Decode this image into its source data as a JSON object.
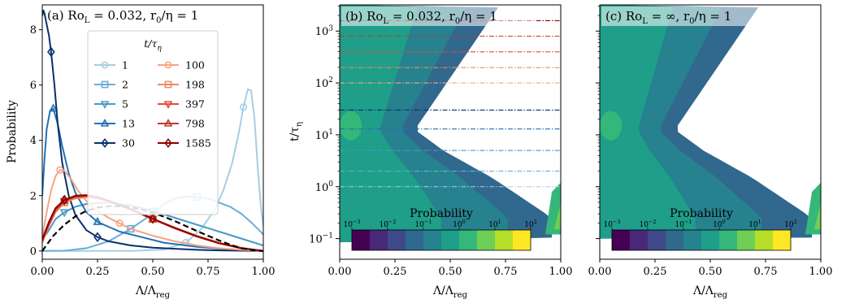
{
  "chart_data": [
    {
      "type": "line",
      "panel": "a",
      "title": "(a) Ro_L = 0.032, r_0/η = 1",
      "title_parts": {
        "prefix": "(a) Ro",
        "sub": "L",
        "mid": "= 0.032, r",
        "sub2": "0",
        "suffix": "/η = 1"
      },
      "xlabel": "Λ/Λ_reg",
      "xlabel_parts": {
        "main": "Λ/Λ",
        "sub": "reg"
      },
      "ylabel": "Probability",
      "xlim": [
        0,
        1
      ],
      "ylim": [
        -0.3,
        8.9
      ],
      "xticks": [
        "0.00",
        "0.25",
        "0.50",
        "0.75",
        "1.00"
      ],
      "yticks": [
        "0",
        "2",
        "4",
        "6",
        "8"
      ],
      "legend": {
        "title": "t/τ_η",
        "title_parts": {
          "main": "t/τ",
          "sub": "η"
        },
        "placement": "upper center"
      },
      "series": [
        {
          "name": "1",
          "color": "#a6cee3",
          "marker": "circle",
          "x": [
            0.0,
            0.2,
            0.4,
            0.55,
            0.65,
            0.72,
            0.78,
            0.82,
            0.86,
            0.89,
            0.91,
            0.93,
            0.945,
            0.96,
            0.975,
            0.99,
            1.0
          ],
          "y": [
            0.0,
            0.0,
            0.0,
            0.05,
            0.3,
            0.8,
            1.5,
            2.2,
            3.2,
            4.3,
            5.2,
            5.85,
            5.8,
            4.8,
            3.0,
            1.5,
            0.9
          ]
        },
        {
          "name": "2",
          "color": "#6aaed6",
          "marker": "square",
          "x": [
            0.0,
            0.1,
            0.2,
            0.3,
            0.4,
            0.5,
            0.55,
            0.6,
            0.65,
            0.7,
            0.75,
            0.8,
            0.85,
            0.9,
            0.95,
            1.0
          ],
          "y": [
            0.0,
            0.01,
            0.1,
            0.35,
            0.8,
            1.35,
            1.7,
            1.9,
            1.97,
            1.95,
            1.9,
            1.75,
            1.6,
            1.35,
            1.0,
            0.6
          ]
        },
        {
          "name": "5",
          "color": "#4a98c9",
          "marker": "triangle-down",
          "x": [
            0.0,
            0.03,
            0.06,
            0.1,
            0.15,
            0.2,
            0.3,
            0.4,
            0.5,
            0.6,
            0.7,
            0.8,
            0.9,
            1.0
          ],
          "y": [
            0.4,
            0.75,
            1.15,
            1.4,
            1.6,
            1.7,
            1.75,
            1.65,
            1.45,
            1.2,
            0.95,
            0.7,
            0.45,
            0.2
          ]
        },
        {
          "name": "13",
          "color": "#2171b5",
          "marker": "triangle-up",
          "x": [
            0.0,
            0.01,
            0.02,
            0.035,
            0.05,
            0.07,
            0.09,
            0.12,
            0.15,
            0.2,
            0.25,
            0.35,
            0.45,
            0.55,
            0.7,
            0.85,
            1.0
          ],
          "y": [
            2.0,
            3.3,
            4.4,
            5.05,
            5.15,
            4.6,
            3.8,
            2.8,
            2.1,
            1.4,
            1.05,
            0.7,
            0.5,
            0.3,
            0.15,
            0.05,
            0.0
          ]
        },
        {
          "name": "30",
          "color": "#08306b",
          "marker": "diamond",
          "x": [
            0.0,
            0.005,
            0.01,
            0.02,
            0.03,
            0.04,
            0.055,
            0.07,
            0.09,
            0.12,
            0.15,
            0.2,
            0.25,
            0.3,
            0.4,
            0.5,
            0.6,
            0.7,
            0.8,
            0.9,
            1.0
          ],
          "y": [
            8.5,
            8.7,
            8.6,
            8.2,
            7.8,
            7.2,
            6.0,
            4.6,
            3.2,
            2.0,
            1.3,
            0.75,
            0.5,
            0.35,
            0.2,
            0.12,
            0.08,
            0.04,
            0.02,
            0.01,
            0.0
          ]
        },
        {
          "name": "100",
          "color": "#f4a582",
          "marker": "circle",
          "x": [
            0.0,
            0.02,
            0.04,
            0.06,
            0.08,
            0.1,
            0.13,
            0.16,
            0.2,
            0.25,
            0.3,
            0.35,
            0.4,
            0.5,
            0.6,
            0.7,
            0.8,
            0.9,
            1.0
          ],
          "y": [
            0.5,
            1.4,
            2.2,
            2.7,
            2.93,
            2.9,
            2.6,
            2.2,
            1.8,
            1.45,
            1.2,
            1.0,
            0.8,
            0.55,
            0.35,
            0.2,
            0.1,
            0.04,
            0.0
          ]
        },
        {
          "name": "198",
          "color": "#ef8a62",
          "marker": "square",
          "x": [
            0.0,
            0.03,
            0.06,
            0.1,
            0.15,
            0.2,
            0.25,
            0.3,
            0.4,
            0.5,
            0.6,
            0.7,
            0.8,
            0.9,
            1.0
          ],
          "y": [
            0.3,
            0.9,
            1.4,
            1.75,
            1.9,
            1.95,
            1.9,
            1.8,
            1.5,
            1.15,
            0.85,
            0.55,
            0.3,
            0.12,
            0.0
          ]
        },
        {
          "name": "397",
          "color": "#e34a33",
          "marker": "triangle-down",
          "x": [
            0.0,
            0.03,
            0.06,
            0.1,
            0.15,
            0.2,
            0.25,
            0.3,
            0.4,
            0.5,
            0.6,
            0.7,
            0.8,
            0.9,
            1.0
          ],
          "y": [
            0.35,
            0.95,
            1.45,
            1.8,
            1.95,
            1.98,
            1.92,
            1.8,
            1.5,
            1.15,
            0.82,
            0.52,
            0.28,
            0.1,
            0.0
          ]
        },
        {
          "name": "798",
          "color": "#c0392b",
          "marker": "triangle-up",
          "x": [
            0.0,
            0.03,
            0.06,
            0.1,
            0.15,
            0.2,
            0.25,
            0.3,
            0.4,
            0.5,
            0.6,
            0.7,
            0.8,
            0.9,
            1.0
          ],
          "y": [
            0.4,
            1.0,
            1.5,
            1.82,
            1.97,
            2.0,
            1.93,
            1.8,
            1.5,
            1.15,
            0.82,
            0.52,
            0.28,
            0.1,
            0.0
          ]
        },
        {
          "name": "1585",
          "color": "#8b0000",
          "marker": "diamond",
          "x": [
            0.0,
            0.03,
            0.06,
            0.1,
            0.15,
            0.2,
            0.25,
            0.3,
            0.4,
            0.5,
            0.6,
            0.7,
            0.8,
            0.9,
            1.0
          ],
          "y": [
            0.42,
            1.05,
            1.55,
            1.85,
            2.0,
            2.02,
            1.95,
            1.82,
            1.52,
            1.17,
            0.83,
            0.53,
            0.28,
            0.1,
            0.0
          ]
        },
        {
          "name": "",
          "color": "#000000",
          "style": "dashed",
          "x": [
            0.0,
            0.05,
            0.1,
            0.15,
            0.2,
            0.25,
            0.3,
            0.35,
            0.4,
            0.45,
            0.5,
            0.55,
            0.6,
            0.65,
            0.7,
            0.75,
            0.8,
            0.85,
            0.9,
            0.95,
            1.0
          ],
          "y": [
            0.0,
            0.55,
            0.95,
            1.25,
            1.45,
            1.57,
            1.62,
            1.62,
            1.58,
            1.5,
            1.38,
            1.24,
            1.08,
            0.9,
            0.72,
            0.55,
            0.38,
            0.23,
            0.1,
            0.03,
            0.0
          ]
        }
      ]
    },
    {
      "type": "heatmap",
      "panel": "b",
      "title": "(b) Ro_L = 0.032, r_0/η = 1",
      "title_parts": {
        "prefix": "(b) Ro",
        "sub": "L",
        "mid": "= 0.032, r",
        "sub2": "0",
        "suffix": "/η = 1"
      },
      "xlabel": "Λ/Λ_reg",
      "xlabel_parts": {
        "main": "Λ/Λ",
        "sub": "reg"
      },
      "ylabel": "t/τ_η",
      "ylabel_parts": {
        "main": "t/τ",
        "sub": "η"
      },
      "xlim": [
        0,
        1
      ],
      "ylim": [
        0.04,
        3200
      ],
      "yscale": "log",
      "xticks": [
        "0.00",
        "0.25",
        "0.50",
        "0.75",
        "1.00"
      ],
      "yticks": [
        {
          "base": "10",
          "exp": "−1"
        },
        {
          "base": "10",
          "exp": "0"
        },
        {
          "base": "10",
          "exp": "1"
        },
        {
          "base": "10",
          "exp": "2"
        },
        {
          "base": "10",
          "exp": "3"
        }
      ],
      "reference_lines": [
        {
          "t": 1,
          "color": "#a6cee3"
        },
        {
          "t": 2,
          "color": "#6aaed6"
        },
        {
          "t": 5,
          "color": "#4a98c9"
        },
        {
          "t": 13,
          "color": "#2171b5"
        },
        {
          "t": 30,
          "color": "#08306b"
        },
        {
          "t": 100,
          "color": "#f4a582"
        },
        {
          "t": 198,
          "color": "#ef8a62"
        },
        {
          "t": 397,
          "color": "#e34a33"
        },
        {
          "t": 798,
          "color": "#c0392b"
        },
        {
          "t": 1585,
          "color": "#8b0000"
        }
      ],
      "colorbar": {
        "label": "Probability",
        "scale": "log",
        "ticks": [
          {
            "base": "10",
            "exp": "−3"
          },
          {
            "base": "10",
            "exp": "−2"
          },
          {
            "base": "10",
            "exp": "−1"
          },
          {
            "base": "10",
            "exp": "0"
          },
          {
            "base": "10",
            "exp": "1"
          },
          {
            "base": "10",
            "exp": "2"
          }
        ],
        "colors": [
          "#440154",
          "#482878",
          "#3e4989",
          "#31688e",
          "#26828e",
          "#1f9e89",
          "#35b779",
          "#6ece58",
          "#b5de2b",
          "#fde725"
        ]
      }
    },
    {
      "type": "heatmap",
      "panel": "c",
      "title": "(c) Ro_L = ∞, r_0/η = 1",
      "title_parts": {
        "prefix": "(c) Ro",
        "sub": "L",
        "mid": "= ∞, r",
        "sub2": "0",
        "suffix": "/η = 1"
      },
      "xlabel": "Λ/Λ_reg",
      "xlabel_parts": {
        "main": "Λ/Λ",
        "sub": "reg"
      },
      "xlim": [
        0,
        1
      ],
      "ylim": [
        0.04,
        3200
      ],
      "yscale": "log",
      "xticks": [
        "0.00",
        "0.25",
        "0.50",
        "0.75",
        "1.00"
      ],
      "colorbar": {
        "label": "Probability",
        "scale": "log",
        "ticks": [
          {
            "base": "10",
            "exp": "−3"
          },
          {
            "base": "10",
            "exp": "−2"
          },
          {
            "base": "10",
            "exp": "−1"
          },
          {
            "base": "10",
            "exp": "0"
          },
          {
            "base": "10",
            "exp": "1"
          },
          {
            "base": "10",
            "exp": "2"
          }
        ],
        "colors": [
          "#440154",
          "#482878",
          "#3e4989",
          "#31688e",
          "#26828e",
          "#1f9e89",
          "#35b779",
          "#6ece58",
          "#b5de2b",
          "#fde725"
        ]
      }
    }
  ]
}
